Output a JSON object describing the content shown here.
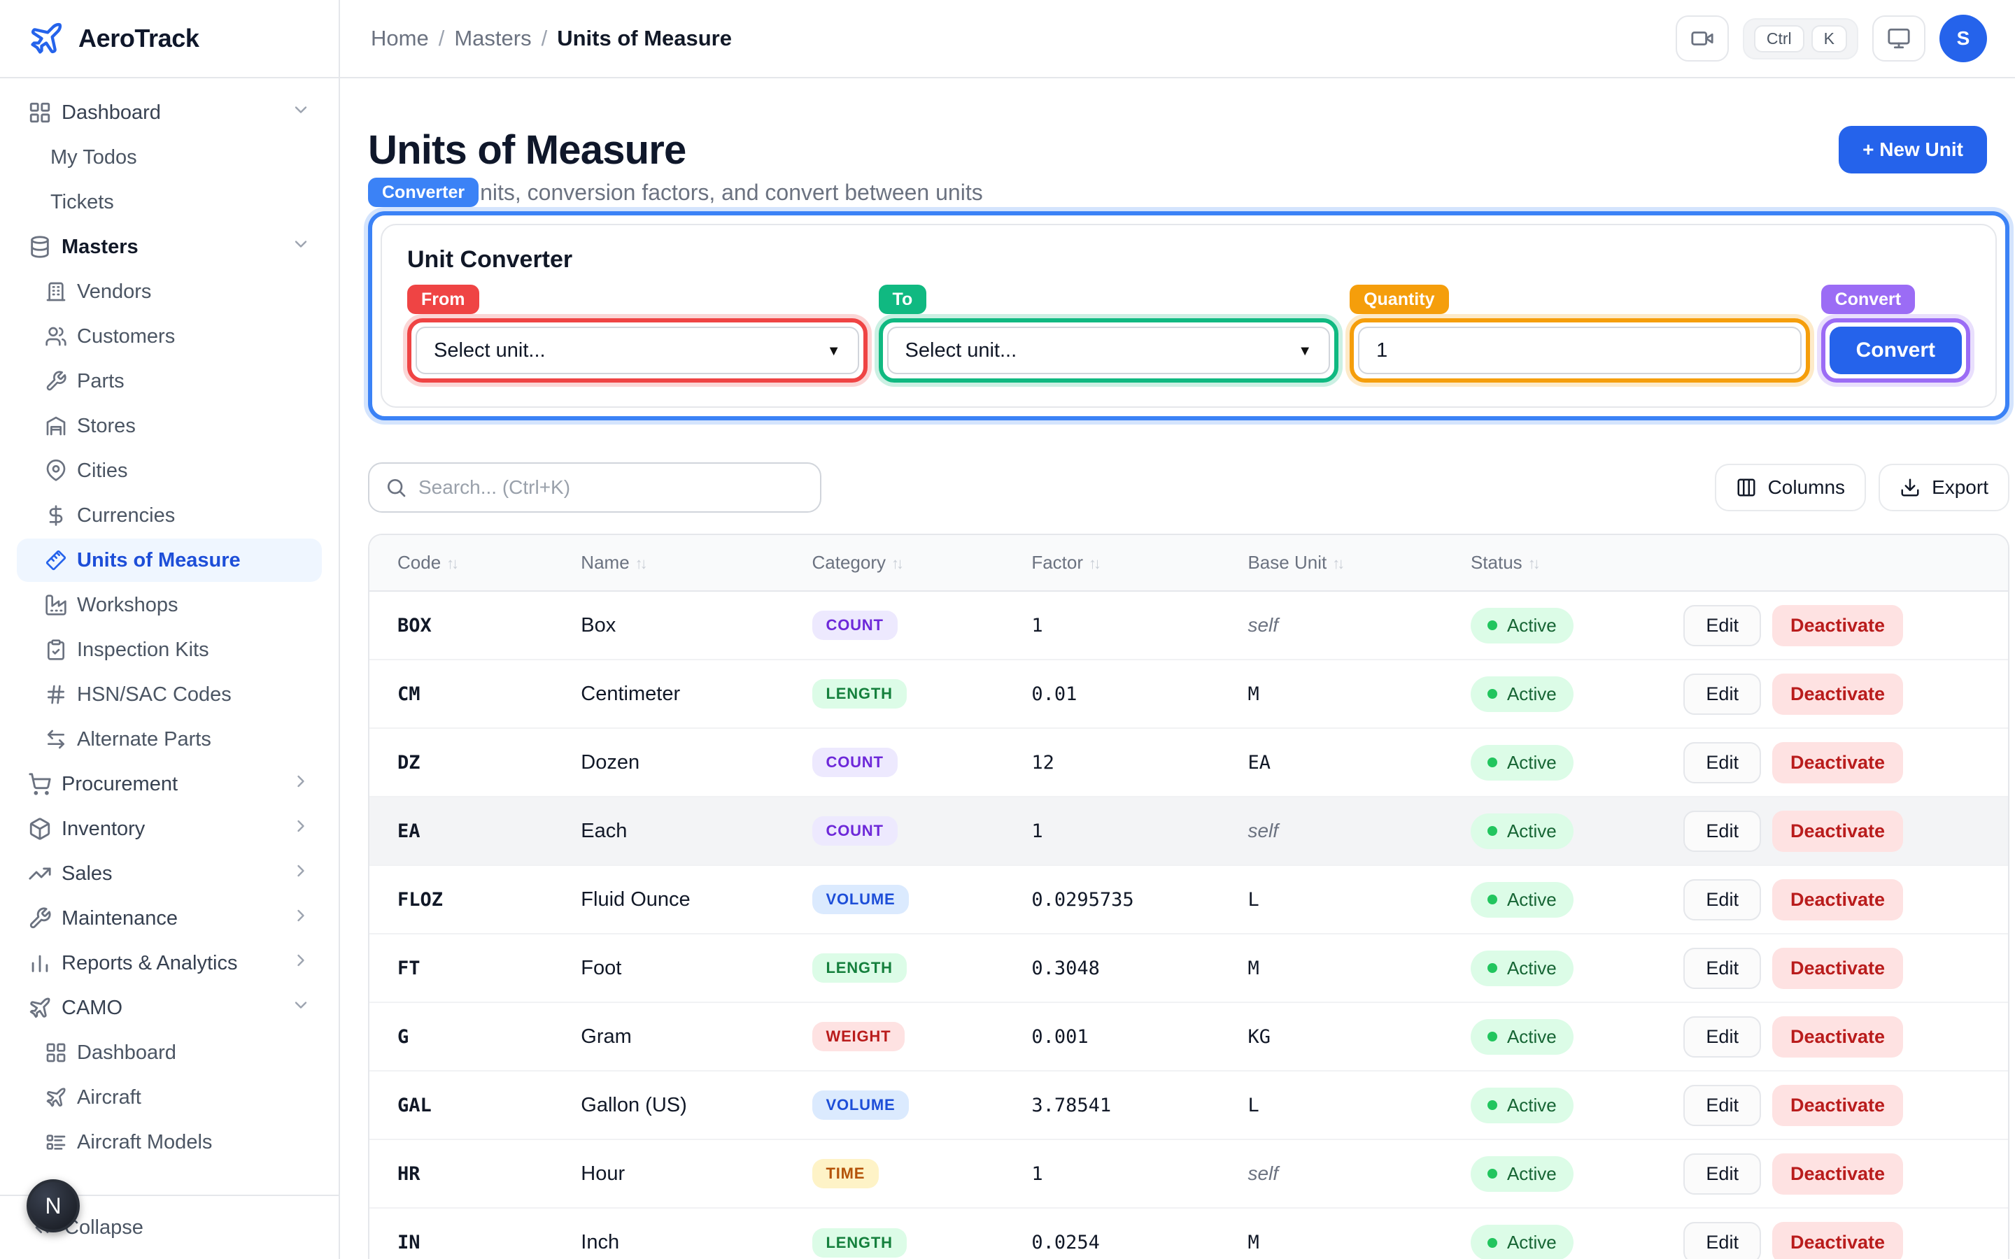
{
  "brand": {
    "name": "AeroTrack"
  },
  "breadcrumb": {
    "items": [
      "Home",
      "Masters"
    ],
    "separator": "/",
    "current": "Units of Measure"
  },
  "topbar": {
    "shortcut_keys": [
      "Ctrl",
      "K"
    ],
    "avatar_initial": "S"
  },
  "sidebar": {
    "sections": [
      {
        "label": "Dashboard",
        "icon": "grid",
        "chevron": "down",
        "children": [
          {
            "label": "My Todos"
          },
          {
            "label": "Tickets"
          }
        ]
      },
      {
        "label": "Masters",
        "icon": "database",
        "chevron": "down",
        "strong": true,
        "children": [
          {
            "label": "Vendors",
            "icon": "building"
          },
          {
            "label": "Customers",
            "icon": "users"
          },
          {
            "label": "Parts",
            "icon": "wrench"
          },
          {
            "label": "Stores",
            "icon": "warehouse"
          },
          {
            "label": "Cities",
            "icon": "map-pin"
          },
          {
            "label": "Currencies",
            "icon": "dollar"
          },
          {
            "label": "Units of Measure",
            "icon": "ruler",
            "active": true
          },
          {
            "label": "Workshops",
            "icon": "factory"
          },
          {
            "label": "Inspection Kits",
            "icon": "clipboard"
          },
          {
            "label": "HSN/SAC Codes",
            "icon": "hash"
          },
          {
            "label": "Alternate Parts",
            "icon": "swap"
          }
        ]
      },
      {
        "label": "Procurement",
        "icon": "cart",
        "chevron": "right"
      },
      {
        "label": "Inventory",
        "icon": "box",
        "chevron": "right"
      },
      {
        "label": "Sales",
        "icon": "trend",
        "chevron": "right"
      },
      {
        "label": "Maintenance",
        "icon": "wrench",
        "chevron": "right"
      },
      {
        "label": "Reports & Analytics",
        "icon": "bars",
        "chevron": "right"
      },
      {
        "label": "CAMO",
        "icon": "plane",
        "chevron": "down",
        "children": [
          {
            "label": "Dashboard",
            "icon": "grid"
          },
          {
            "label": "Aircraft",
            "icon": "plane"
          },
          {
            "label": "Aircraft Models",
            "icon": "list"
          }
        ]
      }
    ],
    "collapse_label": "Collapse",
    "overlay_badge": "N"
  },
  "page": {
    "title": "Units of Measure",
    "new_unit_button": "+ New Unit",
    "subtitle_visible": "nits, conversion factors, and convert between units"
  },
  "annotations": {
    "labels": {
      "converter": "Converter",
      "from": "From",
      "to": "To",
      "quantity": "Quantity",
      "convert": "Convert"
    },
    "colors": {
      "converter": "#3b82f6",
      "from": "#ef4444",
      "to": "#10b981",
      "quantity": "#f59e0b",
      "convert": "#9b6cf5"
    }
  },
  "converter": {
    "heading": "Unit Converter",
    "from_placeholder": "Select unit...",
    "to_placeholder": "Select unit...",
    "quantity_value": "1",
    "convert_button": "Convert"
  },
  "toolbar": {
    "search_placeholder": "Search... (Ctrl+K)",
    "columns_button": "Columns",
    "export_button": "Export"
  },
  "table": {
    "columns": [
      "Code",
      "Name",
      "Category",
      "Factor",
      "Base Unit",
      "Status"
    ],
    "actions": {
      "edit": "Edit",
      "deactivate": "Deactivate"
    },
    "status_active": "Active",
    "category_colors": {
      "COUNT": {
        "bg": "#ede9fe",
        "fg": "#6d28d9"
      },
      "LENGTH": {
        "bg": "#dcfce7",
        "fg": "#15803d"
      },
      "VOLUME": {
        "bg": "#dbeafe",
        "fg": "#1d4ed8"
      },
      "WEIGHT": {
        "bg": "#fee2e2",
        "fg": "#b91c1c"
      },
      "TIME": {
        "bg": "#fef3c7",
        "fg": "#b45309"
      }
    },
    "rows": [
      {
        "code": "BOX",
        "name": "Box",
        "category": "COUNT",
        "factor": "1",
        "base": "self",
        "base_self": true,
        "status": "Active"
      },
      {
        "code": "CM",
        "name": "Centimeter",
        "category": "LENGTH",
        "factor": "0.01",
        "base": "M",
        "base_self": false,
        "status": "Active"
      },
      {
        "code": "DZ",
        "name": "Dozen",
        "category": "COUNT",
        "factor": "12",
        "base": "EA",
        "base_self": false,
        "status": "Active"
      },
      {
        "code": "EA",
        "name": "Each",
        "category": "COUNT",
        "factor": "1",
        "base": "self",
        "base_self": true,
        "status": "Active",
        "highlight": true
      },
      {
        "code": "FLOZ",
        "name": "Fluid Ounce",
        "category": "VOLUME",
        "factor": "0.0295735",
        "base": "L",
        "base_self": false,
        "status": "Active"
      },
      {
        "code": "FT",
        "name": "Foot",
        "category": "LENGTH",
        "factor": "0.3048",
        "base": "M",
        "base_self": false,
        "status": "Active"
      },
      {
        "code": "G",
        "name": "Gram",
        "category": "WEIGHT",
        "factor": "0.001",
        "base": "KG",
        "base_self": false,
        "status": "Active"
      },
      {
        "code": "GAL",
        "name": "Gallon (US)",
        "category": "VOLUME",
        "factor": "3.78541",
        "base": "L",
        "base_self": false,
        "status": "Active"
      },
      {
        "code": "HR",
        "name": "Hour",
        "category": "TIME",
        "factor": "1",
        "base": "self",
        "base_self": true,
        "status": "Active"
      },
      {
        "code": "IN",
        "name": "Inch",
        "category": "LENGTH",
        "factor": "0.0254",
        "base": "M",
        "base_self": false,
        "status": "Active"
      }
    ]
  },
  "colors": {
    "accent": "#2563eb",
    "active_item_bg": "#eff6ff",
    "active_item_fg": "#1d4ed8",
    "status_green_bg": "#dcfce7",
    "status_green_fg": "#166534"
  }
}
